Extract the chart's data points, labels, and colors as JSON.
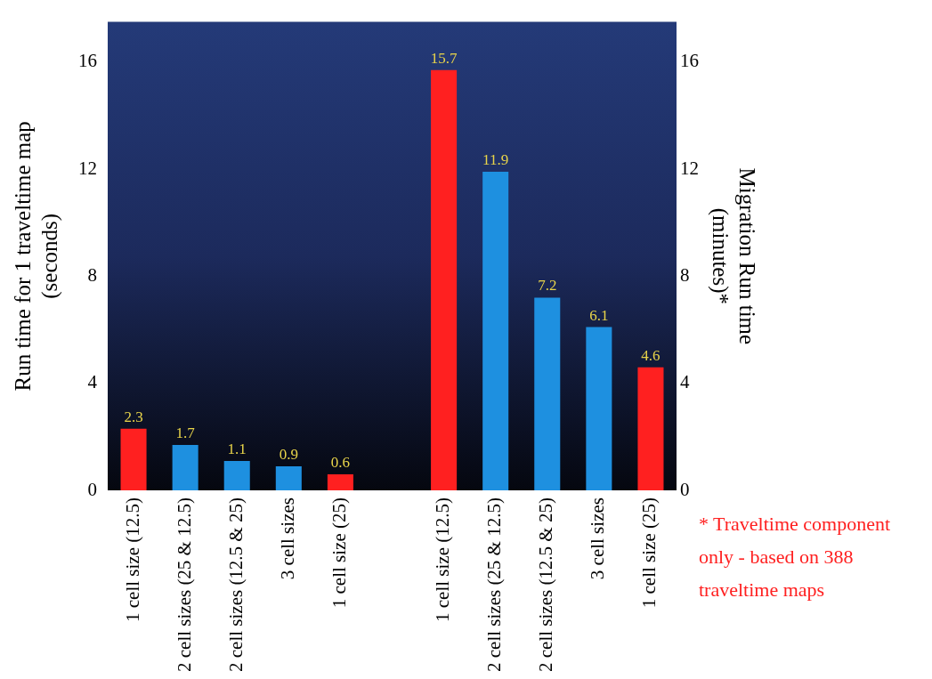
{
  "chart_data": {
    "type": "bar",
    "ylabel": "Run time for 1 traveltime map\n(seconds)",
    "y2label": "Migration Run time\n(minutes)*",
    "categories": [
      "1 cell size (12.5)",
      "2 cell sizes (25 & 12.5)",
      "2 cell sizes (12.5 & 25)",
      "3 cell sizes",
      "1 cell size (25)",
      null,
      "1 cell size (12.5)",
      "2 cell sizes (25 & 12.5)",
      "2 cell sizes (12.5 & 25)",
      "3 cell sizes",
      "1 cell size (25)"
    ],
    "series": [
      {
        "colors": [
          "#ff2020",
          "#1e90e0",
          "#1e90e0",
          "#1e90e0",
          "#ff2020",
          null,
          null,
          null,
          null,
          null,
          null
        ],
        "values": [
          2.3,
          1.7,
          1.1,
          0.9,
          0.6,
          null,
          null,
          null,
          null,
          null,
          null
        ]
      },
      {
        "axis": "y2",
        "colors": [
          null,
          null,
          null,
          null,
          null,
          null,
          "#ff2020",
          "#1e90e0",
          "#1e90e0",
          "#1e90e0",
          "#ff2020"
        ],
        "values": [
          null,
          null,
          null,
          null,
          null,
          null,
          15.7,
          11.9,
          7.2,
          6.1,
          4.6
        ]
      }
    ],
    "ylim": [
      0,
      17.5
    ],
    "yticks": [
      0,
      4,
      8,
      12,
      16
    ],
    "y2lim": [
      0,
      17.5
    ],
    "y2ticks": [
      0,
      4,
      8,
      12,
      16
    ],
    "data_labels": true,
    "grid": false,
    "legend": false,
    "annotations": [
      "* Traveltime  component only - based on 388 traveltime maps"
    ]
  }
}
